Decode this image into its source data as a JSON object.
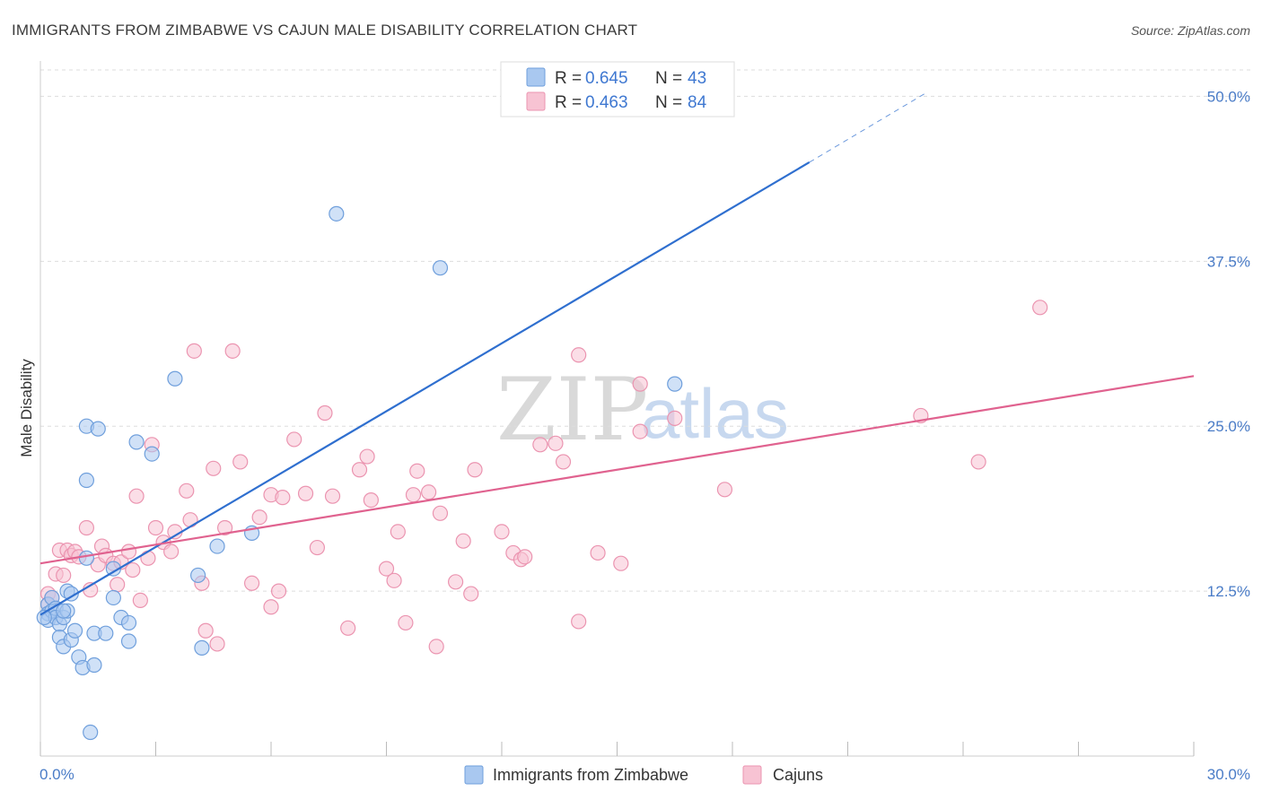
{
  "title": "IMMIGRANTS FROM ZIMBABWE VS CAJUN MALE DISABILITY CORRELATION CHART",
  "source": "Source: ZipAtlas.com",
  "watermark": {
    "zip": "ZIP",
    "atlas": "atlas"
  },
  "legend_top": {
    "r_label": "R =",
    "n_label": "N =",
    "rows": [
      {
        "r": "0.645",
        "n": "43"
      },
      {
        "r": "0.463",
        "n": "84"
      }
    ]
  },
  "legend_bottom": {
    "items": [
      {
        "label": "Immigrants from Zimbabwe"
      },
      {
        "label": "Cajuns"
      }
    ]
  },
  "colors": {
    "blue_fill": "#a9c8f0",
    "blue_stroke": "#6f9fdc",
    "blue_line": "#2f6fcf",
    "pink_fill": "#f7c3d3",
    "pink_stroke": "#eb94b0",
    "pink_line": "#e0628f",
    "grid": "#dddddd",
    "tick_text": "#4a7cc7"
  },
  "chart_data": {
    "type": "scatter",
    "title": "IMMIGRANTS FROM ZIMBABWE VS CAJUN MALE DISABILITY CORRELATION CHART",
    "xlabel": "",
    "ylabel": "Male Disability",
    "xlim": [
      0,
      30
    ],
    "ylim": [
      0,
      52
    ],
    "x_tick_labels": [
      "0.0%",
      "30.0%"
    ],
    "y_ticks": [
      12.5,
      25.0,
      37.5,
      50.0
    ],
    "y_tick_labels": [
      "12.5%",
      "25.0%",
      "37.5%",
      "50.0%"
    ],
    "grid": true,
    "legend_position": "top-center",
    "series": [
      {
        "name": "Immigrants from Zimbabwe",
        "R": 0.645,
        "N": 43,
        "trend": {
          "x_start": 0.0,
          "y_start": 10.7,
          "x_end": 20.0,
          "y_end": 45.0,
          "dashed_to_x": 23.0,
          "dashed_to_y": 50.2
        },
        "points": [
          [
            0.2,
            11.5
          ],
          [
            0.2,
            10.8
          ],
          [
            0.2,
            10.3
          ],
          [
            0.3,
            11.0
          ],
          [
            0.3,
            12.0
          ],
          [
            0.4,
            11.2
          ],
          [
            0.4,
            10.5
          ],
          [
            0.5,
            10.0
          ],
          [
            0.5,
            9.0
          ],
          [
            0.6,
            10.5
          ],
          [
            0.6,
            8.3
          ],
          [
            0.7,
            11.0
          ],
          [
            0.7,
            12.5
          ],
          [
            0.8,
            8.8
          ],
          [
            0.8,
            12.3
          ],
          [
            0.9,
            9.5
          ],
          [
            1.0,
            7.5
          ],
          [
            1.1,
            6.7
          ],
          [
            1.2,
            15.0
          ],
          [
            1.2,
            25.0
          ],
          [
            1.2,
            20.9
          ],
          [
            1.3,
            1.8
          ],
          [
            1.4,
            6.9
          ],
          [
            1.4,
            9.3
          ],
          [
            1.5,
            24.8
          ],
          [
            1.7,
            9.3
          ],
          [
            1.9,
            12.0
          ],
          [
            1.9,
            14.2
          ],
          [
            2.1,
            10.5
          ],
          [
            2.3,
            8.7
          ],
          [
            2.3,
            10.1
          ],
          [
            2.5,
            23.8
          ],
          [
            2.9,
            22.9
          ],
          [
            3.5,
            28.6
          ],
          [
            4.1,
            13.7
          ],
          [
            4.2,
            8.2
          ],
          [
            4.6,
            15.9
          ],
          [
            5.5,
            16.9
          ],
          [
            7.7,
            41.1
          ],
          [
            10.4,
            37.0
          ],
          [
            16.5,
            28.2
          ],
          [
            0.1,
            10.5
          ],
          [
            0.6,
            11.0
          ]
        ]
      },
      {
        "name": "Cajuns",
        "R": 0.463,
        "N": 84,
        "trend": {
          "x_start": 0.0,
          "y_start": 14.6,
          "x_end": 30.0,
          "y_end": 28.8
        },
        "points": [
          [
            0.2,
            12.3
          ],
          [
            0.2,
            11.5
          ],
          [
            0.3,
            12.0
          ],
          [
            0.4,
            13.8
          ],
          [
            0.5,
            15.6
          ],
          [
            0.6,
            13.7
          ],
          [
            0.7,
            15.6
          ],
          [
            0.8,
            15.2
          ],
          [
            0.9,
            15.5
          ],
          [
            1.0,
            15.1
          ],
          [
            1.2,
            17.3
          ],
          [
            1.3,
            12.6
          ],
          [
            1.5,
            14.5
          ],
          [
            1.6,
            15.9
          ],
          [
            1.7,
            15.2
          ],
          [
            1.9,
            14.6
          ],
          [
            2.0,
            13.0
          ],
          [
            2.1,
            14.7
          ],
          [
            2.3,
            15.5
          ],
          [
            2.4,
            14.1
          ],
          [
            2.5,
            19.7
          ],
          [
            2.6,
            11.8
          ],
          [
            2.8,
            15.0
          ],
          [
            2.9,
            23.6
          ],
          [
            3.0,
            17.3
          ],
          [
            3.2,
            16.2
          ],
          [
            3.4,
            15.5
          ],
          [
            3.5,
            17.0
          ],
          [
            3.8,
            20.1
          ],
          [
            3.9,
            17.9
          ],
          [
            4.0,
            30.7
          ],
          [
            4.2,
            13.1
          ],
          [
            4.3,
            9.5
          ],
          [
            4.5,
            21.8
          ],
          [
            4.6,
            8.5
          ],
          [
            4.8,
            17.3
          ],
          [
            5.0,
            30.7
          ],
          [
            5.2,
            22.3
          ],
          [
            5.5,
            13.1
          ],
          [
            5.7,
            18.1
          ],
          [
            6.0,
            11.3
          ],
          [
            6.0,
            19.8
          ],
          [
            6.2,
            12.5
          ],
          [
            6.3,
            19.6
          ],
          [
            6.6,
            24.0
          ],
          [
            6.9,
            19.9
          ],
          [
            7.2,
            15.8
          ],
          [
            7.4,
            26.0
          ],
          [
            7.6,
            19.7
          ],
          [
            8.0,
            9.7
          ],
          [
            8.3,
            21.7
          ],
          [
            8.5,
            22.7
          ],
          [
            8.6,
            19.4
          ],
          [
            9.0,
            14.2
          ],
          [
            9.2,
            13.3
          ],
          [
            9.3,
            17.0
          ],
          [
            9.5,
            10.1
          ],
          [
            9.7,
            19.8
          ],
          [
            9.8,
            21.6
          ],
          [
            10.1,
            20.0
          ],
          [
            10.3,
            8.3
          ],
          [
            10.4,
            18.4
          ],
          [
            10.8,
            13.2
          ],
          [
            11.0,
            16.3
          ],
          [
            11.2,
            12.3
          ],
          [
            11.3,
            21.7
          ],
          [
            12.0,
            17.0
          ],
          [
            12.3,
            15.4
          ],
          [
            12.5,
            14.9
          ],
          [
            12.6,
            15.1
          ],
          [
            13.0,
            23.6
          ],
          [
            13.4,
            23.7
          ],
          [
            13.6,
            22.3
          ],
          [
            14.0,
            30.4
          ],
          [
            14.0,
            10.2
          ],
          [
            14.5,
            15.4
          ],
          [
            15.1,
            14.6
          ],
          [
            15.6,
            28.2
          ],
          [
            15.6,
            24.6
          ],
          [
            16.5,
            25.6
          ],
          [
            17.8,
            20.2
          ],
          [
            22.9,
            25.8
          ],
          [
            24.4,
            22.3
          ],
          [
            26.0,
            34.0
          ]
        ]
      }
    ]
  }
}
